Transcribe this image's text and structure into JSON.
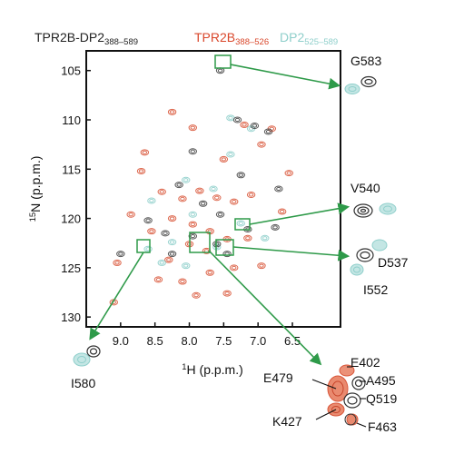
{
  "legend": {
    "black": {
      "base": "TPR2B-DP2",
      "sub": "388–589",
      "color": "#222222"
    },
    "red": {
      "base": "TPR2B",
      "sub": "388–526",
      "color": "#d9472b"
    },
    "cyan": {
      "base": "DP2",
      "sub": "525–589",
      "color": "#9fd5d2"
    }
  },
  "colors": {
    "black": "#3a3a3a",
    "red": "#d9563a",
    "cyan": "#8fcfcb",
    "box": "#2e9a49"
  },
  "chart_data": {
    "type": "scatter",
    "xlabel_pre": "1",
    "xlabel": "H (p.p.m.)",
    "ylabel_pre": "15",
    "ylabel": "N (p.p.m.)",
    "xlim": [
      9.5,
      5.8
    ],
    "ylim": [
      131,
      103
    ],
    "xticks": [
      "9.0",
      "8.5",
      "8.0",
      "7.5",
      "7.0",
      "6.5"
    ],
    "xtick_vals": [
      9.0,
      8.5,
      8.0,
      7.5,
      7.0,
      6.5
    ],
    "yticks": [
      "105",
      "110",
      "115",
      "120",
      "125",
      "130"
    ],
    "ytick_vals": [
      105,
      110,
      115,
      120,
      125,
      130
    ],
    "series": [
      {
        "key": "red",
        "values": [
          [
            8.25,
            109.2
          ],
          [
            7.95,
            110.8
          ],
          [
            7.2,
            110.5
          ],
          [
            6.8,
            110.9
          ],
          [
            6.95,
            112.5
          ],
          [
            8.7,
            115.2
          ],
          [
            8.4,
            117.3
          ],
          [
            8.1,
            118.0
          ],
          [
            7.85,
            117.2
          ],
          [
            7.6,
            117.9
          ],
          [
            7.35,
            118.3
          ],
          [
            7.1,
            117.6
          ],
          [
            8.25,
            120.0
          ],
          [
            7.95,
            120.6
          ],
          [
            7.7,
            121.3
          ],
          [
            7.45,
            122.1
          ],
          [
            8.85,
            119.6
          ],
          [
            8.55,
            121.3
          ],
          [
            8.0,
            122.6
          ],
          [
            7.75,
            123.3
          ],
          [
            7.15,
            122.0
          ],
          [
            6.95,
            124.8
          ],
          [
            8.3,
            124.2
          ],
          [
            8.1,
            126.4
          ],
          [
            7.7,
            125.5
          ],
          [
            7.35,
            125.0
          ],
          [
            6.65,
            119.3
          ],
          [
            6.55,
            115.4
          ],
          [
            9.1,
            128.5
          ],
          [
            7.9,
            127.8
          ],
          [
            8.65,
            113.3
          ],
          [
            7.5,
            114.0
          ],
          [
            8.45,
            126.2
          ],
          [
            7.45,
            127.6
          ],
          [
            9.05,
            124.5
          ]
        ]
      },
      {
        "key": "black",
        "values": [
          [
            7.3,
            110.0
          ],
          [
            7.05,
            110.6
          ],
          [
            6.85,
            111.2
          ],
          [
            7.55,
            105.0
          ],
          [
            8.15,
            116.6
          ],
          [
            7.8,
            118.5
          ],
          [
            7.55,
            119.6
          ],
          [
            8.35,
            121.5
          ],
          [
            7.95,
            121.8
          ],
          [
            7.6,
            122.6
          ],
          [
            8.25,
            123.6
          ],
          [
            8.6,
            120.2
          ],
          [
            7.15,
            121.1
          ],
          [
            6.75,
            120.9
          ],
          [
            9.0,
            123.6
          ],
          [
            7.45,
            123.6
          ],
          [
            7.25,
            115.6
          ],
          [
            7.95,
            113.2
          ],
          [
            6.7,
            117.0
          ]
        ]
      },
      {
        "key": "cyan",
        "values": [
          [
            7.4,
            109.8
          ],
          [
            7.1,
            110.9
          ],
          [
            8.05,
            116.1
          ],
          [
            7.65,
            117.0
          ],
          [
            7.95,
            119.6
          ],
          [
            8.25,
            122.4
          ],
          [
            7.6,
            122.9
          ],
          [
            8.4,
            124.5
          ],
          [
            8.05,
            124.8
          ],
          [
            7.25,
            120.5
          ],
          [
            6.9,
            122.0
          ],
          [
            7.4,
            113.5
          ],
          [
            8.55,
            118.2
          ],
          [
            8.6,
            123.1
          ]
        ]
      }
    ]
  },
  "insets": {
    "G583": "G583",
    "V540": "V540",
    "D537": "D537",
    "I552": "I552",
    "I580": "I580",
    "E402": "E402",
    "E479": "E479",
    "A495": "A495",
    "Q519": "Q519",
    "K427": "K427",
    "F463": "F463"
  }
}
